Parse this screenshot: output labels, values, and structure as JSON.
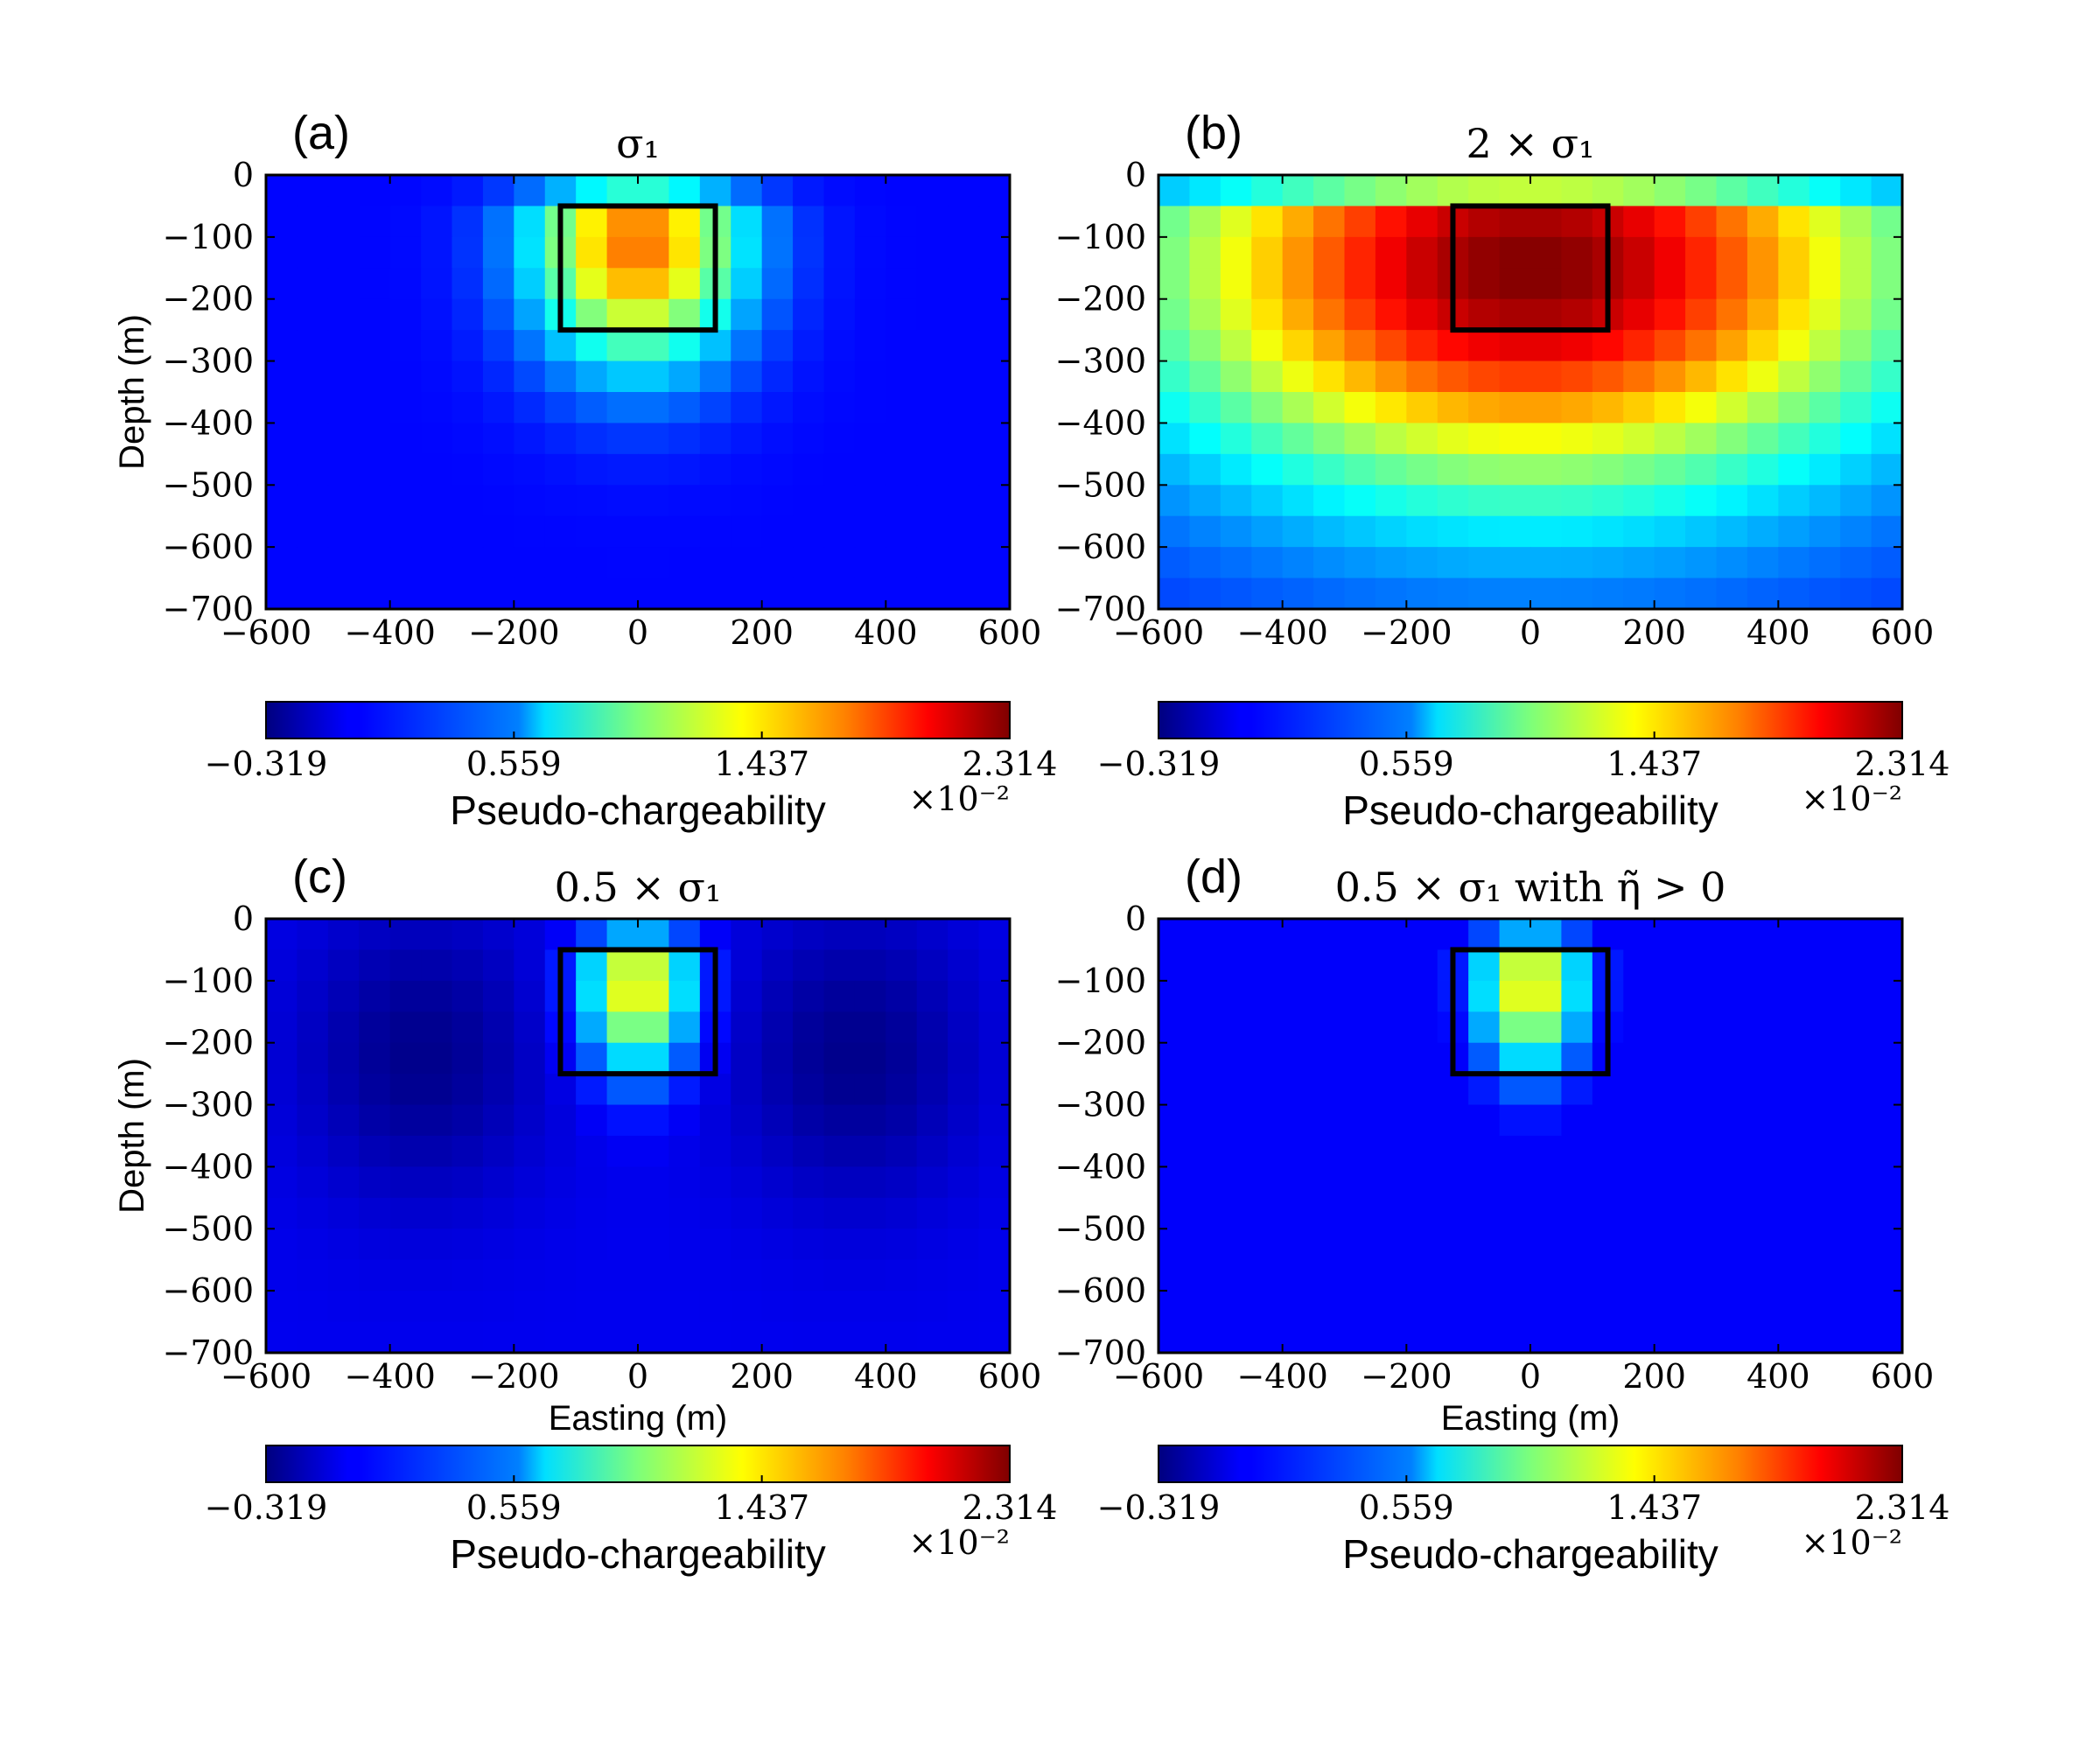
{
  "figure": {
    "colorbar_label": "Pseudo-chargeability",
    "colorbar_multiplier": "×10⁻²",
    "colorbar_ticks": [
      "−0.319",
      "0.559",
      "1.437",
      "2.314"
    ],
    "colorbar_range": [
      -0.319,
      2.314
    ],
    "colormap": "jet",
    "box_color": "#000000"
  },
  "chart_data": [
    {
      "type": "heatmap",
      "panel": "(a)",
      "title": "σ₁",
      "xlabel": "",
      "ylabel": "Depth (m)",
      "xlim": [
        -600,
        600
      ],
      "ylim": [
        -700,
        0
      ],
      "xticks": [
        "−600",
        "−400",
        "−200",
        "0",
        "200",
        "400",
        "600"
      ],
      "yticks": [
        "0",
        "−100",
        "−200",
        "−300",
        "−400",
        "−500",
        "−600",
        "−700"
      ],
      "target_box": {
        "x": [
          -125,
          125
        ],
        "y": [
          -250,
          -50
        ]
      },
      "field": {
        "peak": 1.7,
        "background": 0.02,
        "floor": -0.319,
        "center_x": 0,
        "center_y": -110,
        "sigma_x": 120,
        "sigma_y": 140,
        "side_lobe": 0,
        "positive_only": false
      }
    },
    {
      "type": "heatmap",
      "panel": "(b)",
      "title": "2 × σ₁",
      "xlabel": "",
      "ylabel": "",
      "xlim": [
        -600,
        600
      ],
      "ylim": [
        -700,
        0
      ],
      "xticks": [
        "−600",
        "−400",
        "−200",
        "0",
        "200",
        "400",
        "600"
      ],
      "yticks": [
        "0",
        "−100",
        "−200",
        "−300",
        "−400",
        "−500",
        "−600",
        "−700"
      ],
      "target_box": {
        "x": [
          -125,
          125
        ],
        "y": [
          -250,
          -50
        ]
      },
      "field": {
        "peak": 2.31,
        "background": 0.1,
        "floor": -0.319,
        "center_x": 0,
        "center_y": -150,
        "sigma_x": 430,
        "sigma_y": 250,
        "side_lobe": 0,
        "positive_only": false
      }
    },
    {
      "type": "heatmap",
      "panel": "(c)",
      "title": "0.5 × σ₁",
      "xlabel": "Easting (m)",
      "ylabel": "Depth (m)",
      "xlim": [
        -600,
        600
      ],
      "ylim": [
        -700,
        0
      ],
      "xticks": [
        "−600",
        "−400",
        "−200",
        "0",
        "200",
        "400",
        "600"
      ],
      "yticks": [
        "0",
        "−100",
        "−200",
        "−300",
        "−400",
        "−500",
        "−600",
        "−700"
      ],
      "target_box": {
        "x": [
          -125,
          125
        ],
        "y": [
          -250,
          -50
        ]
      },
      "field": {
        "peak": 1.4,
        "background": -0.03,
        "floor": -0.319,
        "center_x": 0,
        "center_y": -110,
        "sigma_x": 60,
        "sigma_y": 95,
        "side_lobe": -0.26,
        "positive_only": false
      }
    },
    {
      "type": "heatmap",
      "panel": "(d)",
      "title": "0.5 × σ₁ with η̃ > 0",
      "xlabel": "Easting (m)",
      "ylabel": "",
      "xlim": [
        -600,
        600
      ],
      "ylim": [
        -700,
        0
      ],
      "xticks": [
        "−600",
        "−400",
        "−200",
        "0",
        "200",
        "400",
        "600"
      ],
      "yticks": [
        "0",
        "−100",
        "−200",
        "−300",
        "−400",
        "−500",
        "−600",
        "−700"
      ],
      "target_box": {
        "x": [
          -125,
          125
        ],
        "y": [
          -250,
          -50
        ]
      },
      "field": {
        "peak": 1.4,
        "background": -0.03,
        "floor": -0.319,
        "center_x": 0,
        "center_y": -110,
        "sigma_x": 60,
        "sigma_y": 95,
        "side_lobe": -0.26,
        "positive_only": true
      }
    }
  ]
}
